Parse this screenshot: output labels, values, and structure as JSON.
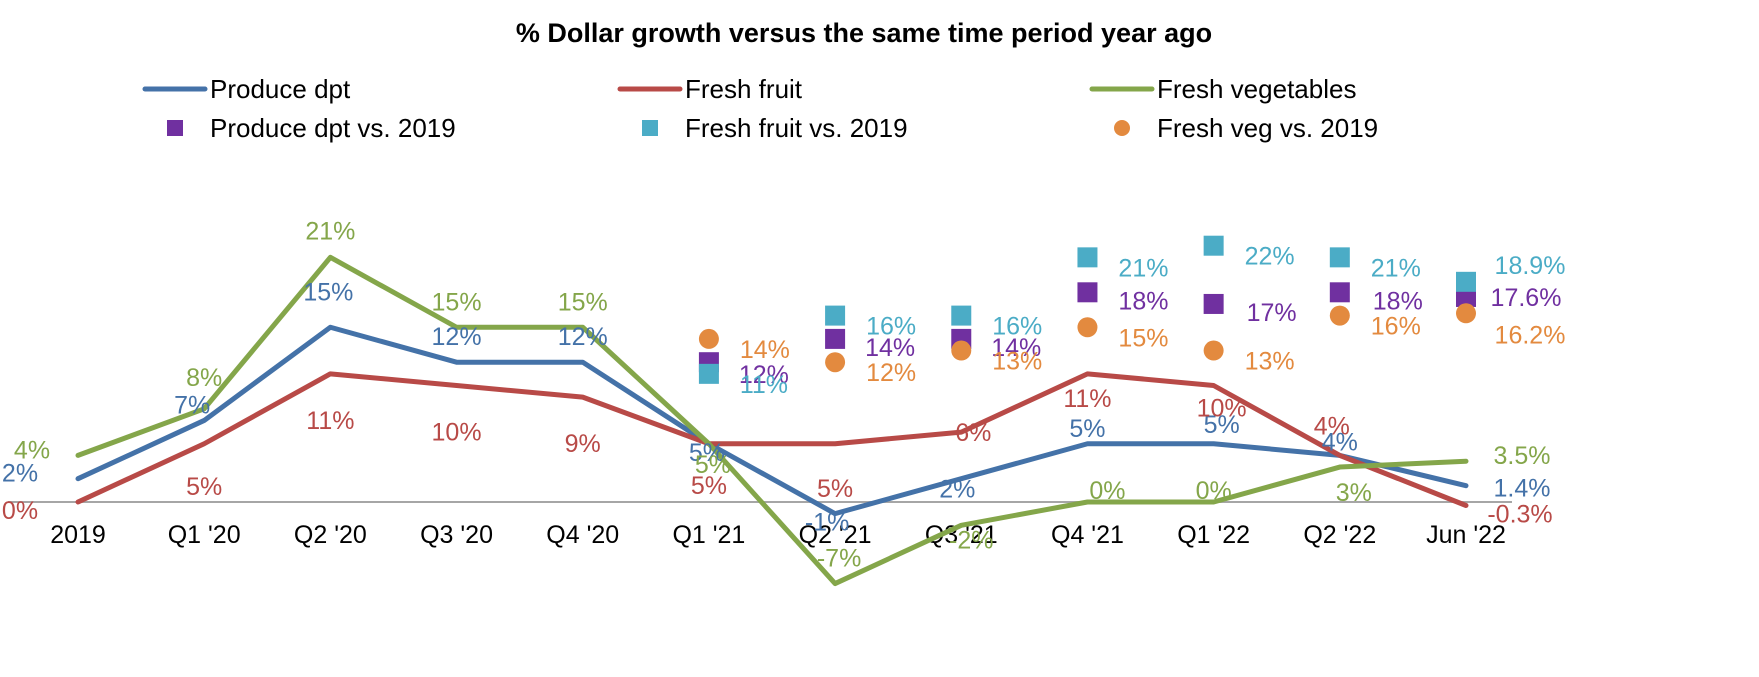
{
  "chart_data": {
    "type": "line",
    "title": "% Dollar growth versus the same time period year ago",
    "xlabel": "",
    "ylabel": "",
    "categories": [
      "2019",
      "Q1 '20",
      "Q2 '20",
      "Q3 '20",
      "Q4 '20",
      "Q1 '21",
      "Q2 '21",
      "Q3 '21",
      "Q4 '21",
      "Q1 '22",
      "Q2 '22",
      "Jun '22"
    ],
    "ylim": [
      -7.5,
      24
    ],
    "grid": false,
    "legend_position": "top",
    "series": [
      {
        "name": "Produce dpt",
        "kind": "line",
        "color": "#4472a8",
        "values": [
          2,
          7,
          15,
          12,
          12,
          5,
          -1,
          2,
          5,
          5,
          4,
          1.4
        ],
        "labels": [
          "2%",
          "7%",
          "15%",
          "12%",
          "12%",
          "5%",
          "-1%",
          "2%",
          "5%",
          "5%",
          "4%",
          "1.4%"
        ]
      },
      {
        "name": "Fresh fruit",
        "kind": "line",
        "color": "#b84a47",
        "values": [
          0,
          5,
          11,
          10,
          9,
          5,
          5,
          6,
          11,
          10,
          4,
          -0.3
        ],
        "labels": [
          "0%",
          "5%",
          "11%",
          "10%",
          "9%",
          "5%",
          "5%",
          "6%",
          "11%",
          "10%",
          "4%",
          "-0.3%"
        ]
      },
      {
        "name": "Fresh vegetables",
        "kind": "line",
        "color": "#84a64a",
        "values": [
          4,
          8,
          21,
          15,
          15,
          5,
          -7,
          -2,
          0,
          0,
          3,
          3.5
        ],
        "labels": [
          "4%",
          "8%",
          "21%",
          "15%",
          "15%",
          "5%",
          "-7%",
          "-2%",
          "0%",
          "0%",
          "3%",
          "3.5%"
        ]
      },
      {
        "name": "Produce dpt vs. 2019",
        "kind": "scatter",
        "marker": "square",
        "color": "#7030a0",
        "values": [
          null,
          null,
          null,
          null,
          null,
          12,
          14,
          14,
          18,
          17,
          18,
          17.6
        ],
        "labels": [
          "",
          "",
          "",
          "",
          "",
          "12%",
          "14%",
          "14%",
          "18%",
          "17%",
          "18%",
          "17.6%"
        ]
      },
      {
        "name": "Fresh fruit vs. 2019",
        "kind": "scatter",
        "marker": "square",
        "color": "#4bacc6",
        "values": [
          null,
          null,
          null,
          null,
          null,
          11,
          16,
          16,
          21,
          22,
          21,
          18.9
        ],
        "labels": [
          "",
          "",
          "",
          "",
          "",
          "11%",
          "16%",
          "16%",
          "21%",
          "22%",
          "21%",
          "18.9%"
        ]
      },
      {
        "name": "Fresh veg vs. 2019",
        "kind": "scatter",
        "marker": "circle",
        "color": "#e38a3f",
        "values": [
          null,
          null,
          null,
          null,
          null,
          14,
          12,
          13,
          15,
          13,
          16,
          16.2
        ],
        "labels": [
          "",
          "",
          "",
          "",
          "",
          "14%",
          "12%",
          "13%",
          "15%",
          "13%",
          "16%",
          "16.2%"
        ]
      }
    ]
  }
}
